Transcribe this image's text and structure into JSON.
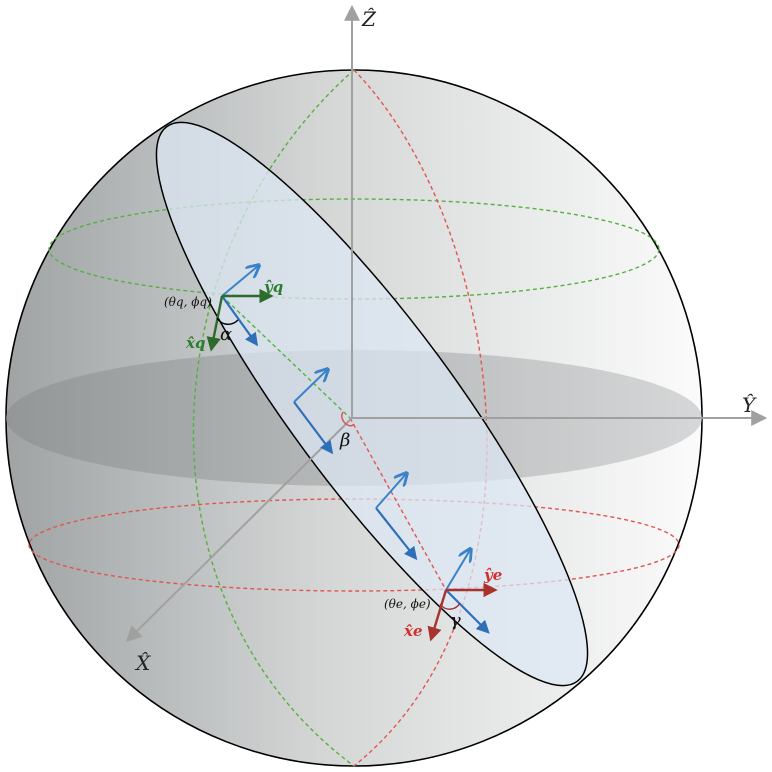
{
  "axes": {
    "z_label": "Ẑ",
    "y_label": "Ŷ",
    "x_label": "X̂"
  },
  "earth_frame": {
    "point_label": "(θe, ϕe)",
    "x_label": "x̂e",
    "y_label": "ŷe",
    "color": "#d0312d"
  },
  "query_frame": {
    "point_label": "(θq, ϕq)",
    "x_label": "x̂q",
    "y_label": "ŷq",
    "color": "#2e7d32"
  },
  "angles": {
    "alpha": "α",
    "beta": "β",
    "gamma": "γ"
  },
  "colors": {
    "great_circle_vectors": "#3a7fc4",
    "guide_green": "#55b13f",
    "guide_red": "#e0564f"
  }
}
